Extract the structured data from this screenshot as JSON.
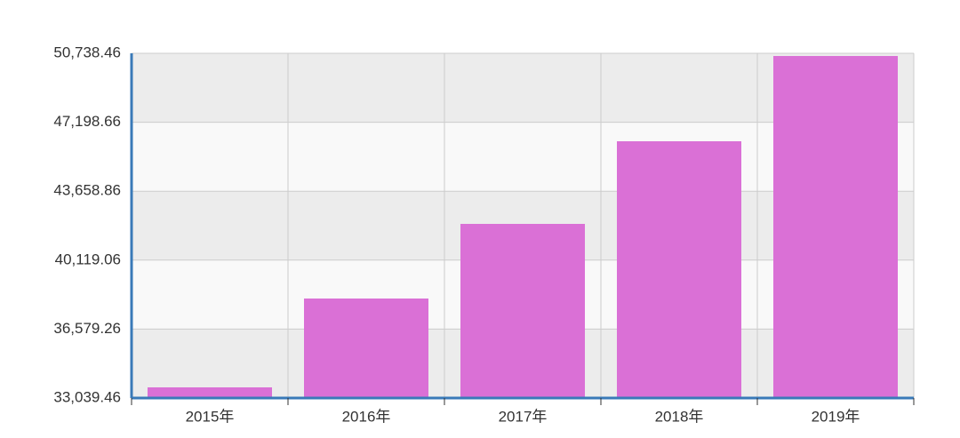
{
  "chart_data": {
    "type": "bar",
    "categories": [
      "2015年",
      "2016年",
      "2017年",
      "2018年",
      "2019年"
    ],
    "values": [
      33587,
      38148,
      41980,
      46222,
      50601
    ],
    "color": "#da70d6",
    "ylim": [
      33039.46,
      50738.46
    ],
    "yticks": [
      {
        "value": 33039.46,
        "label": "33,039.46"
      },
      {
        "value": 36579.26,
        "label": "36,579.26"
      },
      {
        "value": 40119.06,
        "label": "40,119.06"
      },
      {
        "value": 43658.86,
        "label": "43,658.86"
      },
      {
        "value": 47198.66,
        "label": "47,198.66"
      },
      {
        "value": 50738.46,
        "label": "50,738.46"
      }
    ],
    "grid": true
  }
}
